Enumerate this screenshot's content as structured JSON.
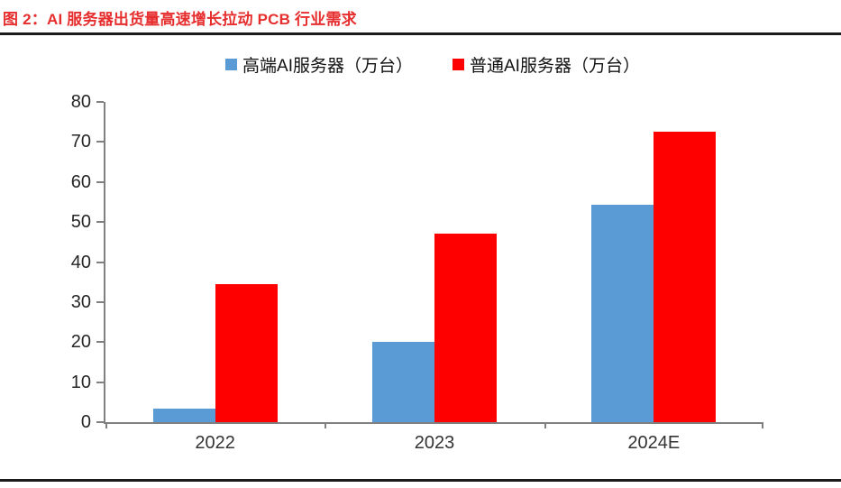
{
  "figure": {
    "title": "图 2：AI 服务器出货量高速增长拉动 PCB 行业需求"
  },
  "colors": {
    "title_red": "#e62e2e",
    "rule_dark": "#1a1a1a",
    "axis_gray": "#808080",
    "tick_label": "#262626",
    "series_blue": "#5b9bd5",
    "series_red": "#fe0000"
  },
  "chart_data": {
    "type": "bar",
    "title": "图 2：AI 服务器出货量高速增长拉动 PCB 行业需求",
    "categories": [
      "2022",
      "2023",
      "2024E"
    ],
    "series": [
      {
        "name": "高端AI服务器（万台）",
        "color": "#5b9bd5",
        "values": [
          3.4,
          20,
          54.3
        ]
      },
      {
        "name": "普通AI服务器（万台）",
        "color": "#fe0000",
        "values": [
          34.5,
          47,
          72.5
        ]
      }
    ],
    "xlabel": "",
    "ylabel": "",
    "ylim": [
      0,
      80
    ],
    "ytick_step": 10,
    "ytick_labels": [
      "0",
      "10",
      "20",
      "30",
      "40",
      "50",
      "60",
      "70",
      "80"
    ],
    "grid": false,
    "legend_position": "top-center"
  }
}
